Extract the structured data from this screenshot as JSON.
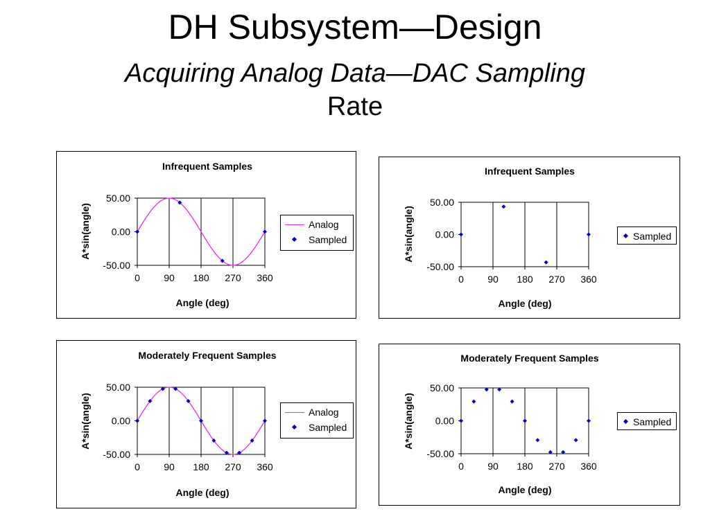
{
  "slide": {
    "title": "DH Subsystem—Design",
    "subtitle_line1": "Acquiring Analog Data—DAC Sampling",
    "subtitle_line2": "Rate"
  },
  "colors": {
    "analog_line": "#e62ee6",
    "sampled_marker": "#0000cc",
    "grid": "#000000"
  },
  "legend": {
    "analog": "Analog",
    "sampled": "Sampled"
  },
  "chart_data": [
    {
      "type": "line",
      "title": "Infrequent Samples",
      "xlabel": "Angle (deg)",
      "ylabel": "A*sin(angle)",
      "xlim": [
        0,
        360
      ],
      "ylim": [
        -50,
        50
      ],
      "xticks": [
        "0",
        "90",
        "180",
        "270",
        "360"
      ],
      "yticks": [
        "50.00",
        "0.00",
        "-50.00"
      ],
      "grid": "vertical",
      "legend_position": "right",
      "series": [
        {
          "name": "Analog",
          "kind": "line",
          "function": "50*sin(x)",
          "color": "#e62ee6"
        },
        {
          "name": "Sampled",
          "kind": "markers",
          "x": [
            0,
            120,
            240,
            360
          ],
          "y": [
            0,
            43.3,
            -43.3,
            0
          ],
          "color": "#0000cc"
        }
      ]
    },
    {
      "type": "scatter",
      "title": "Infrequent Samples",
      "xlabel": "Angle (deg)",
      "ylabel": "A*sin(angle)",
      "xlim": [
        0,
        360
      ],
      "ylim": [
        -50,
        50
      ],
      "xticks": [
        "0",
        "90",
        "180",
        "270",
        "360"
      ],
      "yticks": [
        "50.00",
        "0.00",
        "-50.00"
      ],
      "grid": "vertical",
      "legend_position": "right",
      "series": [
        {
          "name": "Sampled",
          "kind": "markers",
          "x": [
            0,
            120,
            240,
            360
          ],
          "y": [
            0,
            43.3,
            -43.3,
            0
          ],
          "color": "#0000cc"
        }
      ]
    },
    {
      "type": "line",
      "title": "Moderately Frequent Samples",
      "xlabel": "Angle (deg)",
      "ylabel": "A*sin(angle)",
      "xlim": [
        0,
        360
      ],
      "ylim": [
        -50,
        50
      ],
      "xticks": [
        "0",
        "90",
        "180",
        "270",
        "360"
      ],
      "yticks": [
        "50.00",
        "0.00",
        "-50.00"
      ],
      "grid": "vertical",
      "legend_position": "right",
      "series": [
        {
          "name": "Analog",
          "kind": "line",
          "function": "50*sin(x)",
          "color": "#e62ee6"
        },
        {
          "name": "Sampled",
          "kind": "markers",
          "x": [
            0,
            36,
            72,
            108,
            144,
            180,
            216,
            252,
            288,
            324,
            360
          ],
          "y": [
            0,
            29.4,
            47.6,
            47.6,
            29.4,
            0,
            -29.4,
            -47.6,
            -47.6,
            -29.4,
            0
          ],
          "color": "#0000cc"
        }
      ]
    },
    {
      "type": "scatter",
      "title": "Moderately Frequent Samples",
      "xlabel": "Angle (deg)",
      "ylabel": "A*sin(angle)",
      "xlim": [
        0,
        360
      ],
      "ylim": [
        -50,
        50
      ],
      "xticks": [
        "0",
        "90",
        "180",
        "270",
        "360"
      ],
      "yticks": [
        "50.00",
        "0.00",
        "-50.00"
      ],
      "grid": "vertical",
      "legend_position": "right",
      "series": [
        {
          "name": "Sampled",
          "kind": "markers",
          "x": [
            0,
            36,
            72,
            108,
            144,
            180,
            216,
            252,
            288,
            324,
            360
          ],
          "y": [
            0,
            29.4,
            47.6,
            47.6,
            29.4,
            0,
            -29.4,
            -47.6,
            -47.6,
            -29.4,
            0
          ],
          "color": "#0000cc"
        }
      ]
    }
  ]
}
